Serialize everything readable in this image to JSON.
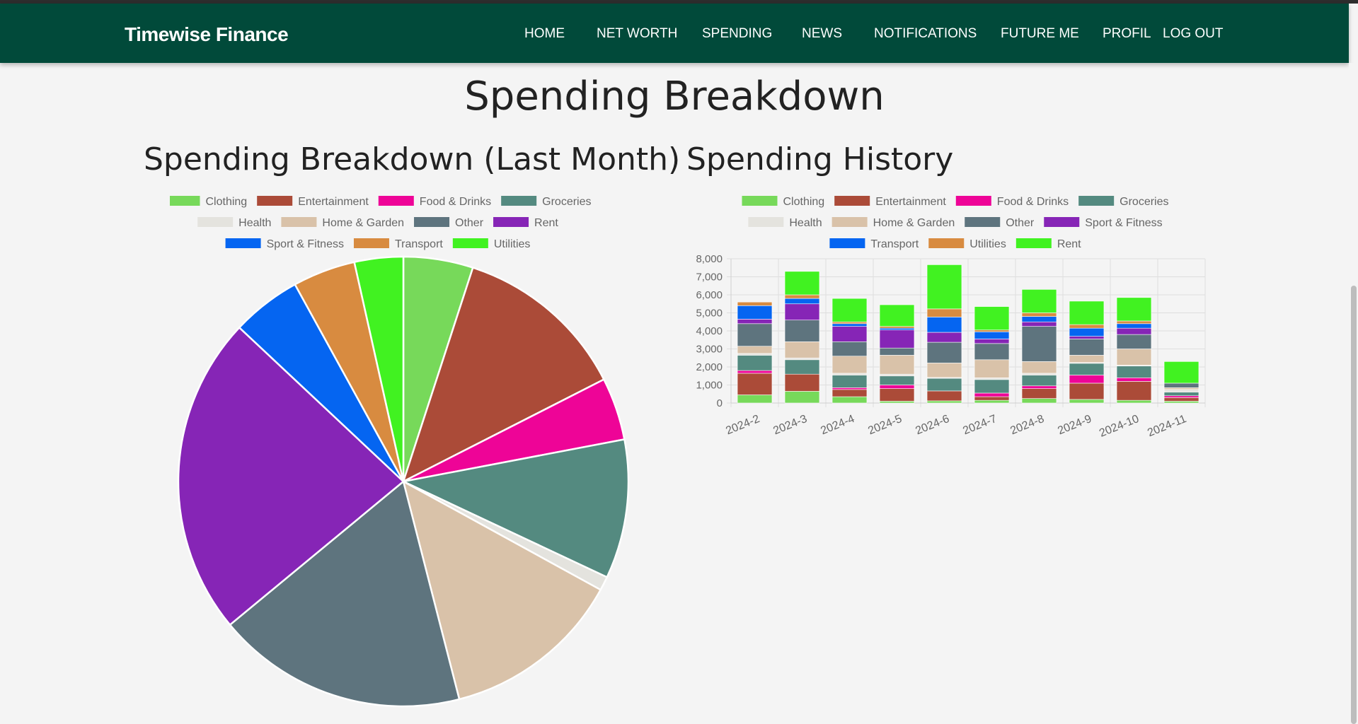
{
  "app": {
    "brand": "Timewise Finance"
  },
  "nav": {
    "items": [
      "HOME",
      "NET WORTH",
      "SPENDING",
      "NEWS",
      "NOTIFICATIONS",
      "FUTURE ME",
      "PROFIL",
      "LOG OUT"
    ]
  },
  "page": {
    "title": "Spending Breakdown",
    "pie_title": "Spending Breakdown (Last Month)",
    "history_title": "Spending History"
  },
  "colors": {
    "navbar": "#014a3a",
    "background": "#f4f4f4"
  },
  "chart_data": [
    {
      "type": "pie",
      "title": "Spending Breakdown (Last Month)",
      "legend_position": "top",
      "labels": [
        "Clothing",
        "Entertainment",
        "Food & Drinks",
        "Groceries",
        "Health",
        "Home & Garden",
        "Other",
        "Rent",
        "Sport & Fitness",
        "Transport",
        "Utilities"
      ],
      "values": [
        5.0,
        12.5,
        4.5,
        10.0,
        1.0,
        13.0,
        18.0,
        23.0,
        5.0,
        4.5,
        3.5
      ],
      "colors": [
        "#77d95a",
        "#ab4b38",
        "#ee0497",
        "#548a80",
        "#e4e3de",
        "#d9c2a9",
        "#5e747e",
        "#8625b6",
        "#0565f1",
        "#d88b40",
        "#41f221"
      ]
    },
    {
      "type": "bar",
      "stacked": true,
      "title": "Spending History",
      "legend_position": "top",
      "categories": [
        "2024-2",
        "2024-3",
        "2024-4",
        "2024-5",
        "2024-6",
        "2024-7",
        "2024-8",
        "2024-9",
        "2024-10",
        "2024-11"
      ],
      "ylim": [
        0,
        8000
      ],
      "yticks": [
        "0",
        "1,000",
        "2,000",
        "3,000",
        "4,000",
        "5,000",
        "6,000",
        "7,000",
        "8,000"
      ],
      "grid": true,
      "series": [
        {
          "name": "Clothing",
          "color": "#77d95a",
          "values": [
            450,
            650,
            350,
            100,
            120,
            150,
            250,
            200,
            150,
            100
          ]
        },
        {
          "name": "Entertainment",
          "color": "#ab4b38",
          "values": [
            1200,
            950,
            400,
            700,
            550,
            200,
            550,
            900,
            1050,
            200
          ]
        },
        {
          "name": "Food & Drinks",
          "color": "#ee0497",
          "values": [
            150,
            0,
            100,
            200,
            0,
            200,
            150,
            450,
            200,
            100
          ]
        },
        {
          "name": "Groceries",
          "color": "#548a80",
          "values": [
            850,
            800,
            700,
            500,
            700,
            750,
            600,
            650,
            650,
            200
          ]
        },
        {
          "name": "Health",
          "color": "#e4e3de",
          "values": [
            100,
            100,
            100,
            100,
            50,
            100,
            100,
            50,
            50,
            150
          ]
        },
        {
          "name": "Home & Garden",
          "color": "#d9c2a9",
          "values": [
            400,
            900,
            950,
            1050,
            800,
            1000,
            650,
            400,
            900,
            100
          ]
        },
        {
          "name": "Other",
          "color": "#5e747e",
          "values": [
            1250,
            1200,
            800,
            400,
            1150,
            900,
            1950,
            900,
            800,
            250
          ]
        },
        {
          "name": "Sport & Fitness",
          "color": "#8625b6",
          "values": [
            250,
            900,
            850,
            1000,
            550,
            250,
            250,
            150,
            350,
            0
          ]
        },
        {
          "name": "Transport",
          "color": "#0565f1",
          "values": [
            750,
            300,
            150,
            100,
            850,
            400,
            300,
            450,
            250,
            0
          ]
        },
        {
          "name": "Utilities",
          "color": "#d88b40",
          "values": [
            200,
            200,
            100,
            100,
            450,
            100,
            200,
            200,
            150,
            0
          ]
        },
        {
          "name": "Rent",
          "color": "#41f221",
          "values": [
            0,
            1300,
            1300,
            1200,
            2450,
            1300,
            1300,
            1300,
            1300,
            1200
          ]
        }
      ]
    }
  ]
}
